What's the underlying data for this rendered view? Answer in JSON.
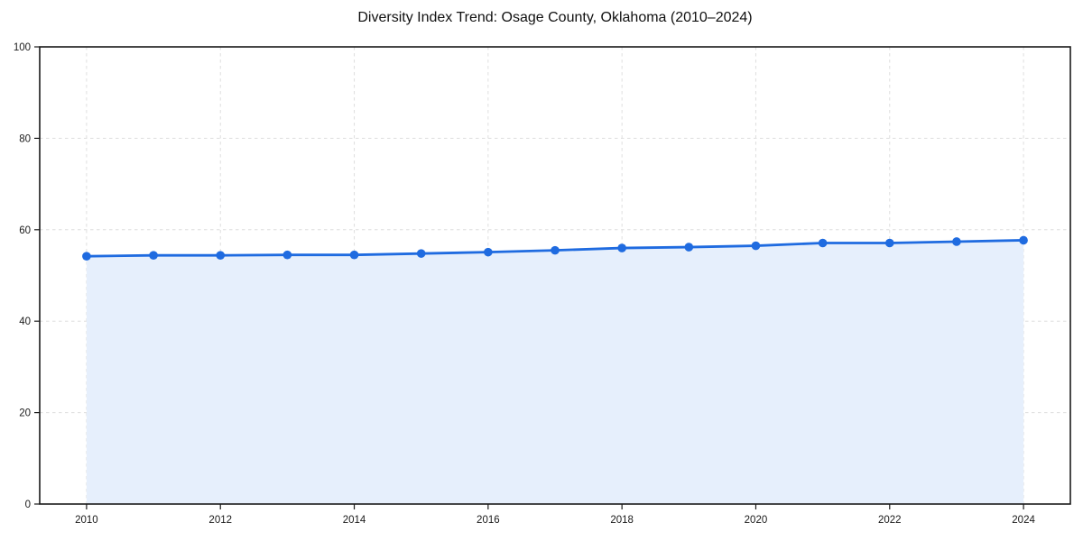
{
  "chart_data": {
    "type": "area",
    "title": "Diversity Index Trend: Osage County, Oklahoma (2010–2024)",
    "x": [
      2010,
      2011,
      2012,
      2013,
      2014,
      2015,
      2016,
      2017,
      2018,
      2019,
      2020,
      2021,
      2022,
      2023,
      2024
    ],
    "series": [
      {
        "name": "Diversity Index",
        "values": [
          54.2,
          54.4,
          54.4,
          54.5,
          54.5,
          54.8,
          55.1,
          55.5,
          56.0,
          56.2,
          56.5,
          57.1,
          57.1,
          57.4,
          57.7
        ]
      }
    ],
    "xlabel": "",
    "ylabel": "",
    "xlim": [
      2009.3,
      2024.7
    ],
    "ylim": [
      0,
      100
    ],
    "x_ticks": [
      2010,
      2012,
      2014,
      2016,
      2018,
      2020,
      2022,
      2024
    ],
    "y_ticks": [
      0,
      20,
      40,
      60,
      80,
      100
    ],
    "grid": "dashed",
    "legend": "none",
    "marker": "circle",
    "colors": {
      "line": "#1f6be0",
      "marker": "#1f6be0",
      "fill": "#e6effc",
      "grid": "#dedede",
      "spine": "#1a1a1a",
      "tick_label": "#1a1a1a",
      "background": "#ffffff"
    }
  }
}
